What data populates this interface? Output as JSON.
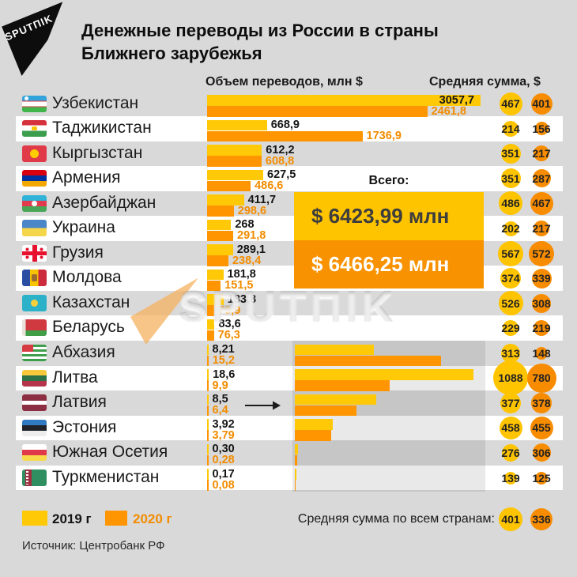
{
  "logo": {
    "text": "SPUTΠIK"
  },
  "title": {
    "line1": "Денежные переводы из России в страны",
    "line2": "Ближнего зарубежья"
  },
  "headers": {
    "volume": "Объем переводов, млн $",
    "avg": "Средняя сумма, $"
  },
  "total": {
    "label": "Всего:",
    "v2019": "$ 6423,99 млн",
    "v2020": "$ 6466,25 млн"
  },
  "watermark": {
    "text": "SPUTΠIK"
  },
  "legend": {
    "y2019": "2019 г",
    "y2020": "2020 г"
  },
  "footer": {
    "avg_all_label": "Средняя сумма по всем странам:",
    "avg_all_2019": "401",
    "avg_all_2020": "336",
    "source": "Источник: Центробанк РФ"
  },
  "colors": {
    "bar2019": "#ffc907",
    "bar2020": "#ff9500",
    "circle2019": "#ffc400",
    "circle2020": "#f78c00",
    "box2019": "#ffc400",
    "box2020": "#f89200",
    "value2020_text": "#f28c00",
    "page_bg": "#d9d9d9"
  },
  "rows": [
    {
      "country": "Узбекистан",
      "flag": "uz",
      "vol2019": "3057,7",
      "vol2020": "2461,8",
      "avg2019": "467",
      "avg2020": "401"
    },
    {
      "country": "Таджикистан",
      "flag": "tj",
      "vol2019": "668,9",
      "vol2020": "1736,9",
      "avg2019": "214",
      "avg2020": "156"
    },
    {
      "country": "Кыргызстан",
      "flag": "kg",
      "vol2019": "612,2",
      "vol2020": "608,8",
      "avg2019": "351",
      "avg2020": "217"
    },
    {
      "country": "Армения",
      "flag": "am",
      "vol2019": "627,5",
      "vol2020": "486,6",
      "avg2019": "351",
      "avg2020": "287"
    },
    {
      "country": "Азербайджан",
      "flag": "az",
      "vol2019": "411,7",
      "vol2020": "298,6",
      "avg2019": "486",
      "avg2020": "467"
    },
    {
      "country": "Украина",
      "flag": "ua",
      "vol2019": "268",
      "vol2020": "291,8",
      "avg2019": "202",
      "avg2020": "217"
    },
    {
      "country": "Грузия",
      "flag": "ge",
      "vol2019": "289,1",
      "vol2020": "238,4",
      "avg2019": "567",
      "avg2020": "572"
    },
    {
      "country": "Молдова",
      "flag": "md",
      "vol2019": "181,8",
      "vol2020": "151,5",
      "avg2019": "374",
      "avg2020": "339"
    },
    {
      "country": "Казахстан",
      "flag": "kz",
      "vol2019": "183,8",
      "vol2020": "79,9",
      "avg2019": "526",
      "avg2020": "308"
    },
    {
      "country": "Беларусь",
      "flag": "by",
      "vol2019": "83,6",
      "vol2020": "76,3",
      "avg2019": "229",
      "avg2020": "219"
    },
    {
      "country": "Абхазия",
      "flag": "ab",
      "vol2019": "8,21",
      "vol2020": "15,2",
      "avg2019": "313",
      "avg2020": "148"
    },
    {
      "country": "Литва",
      "flag": "lt",
      "vol2019": "18,6",
      "vol2020": "9,9",
      "avg2019": "1088",
      "avg2020": "780"
    },
    {
      "country": "Латвия",
      "flag": "lv",
      "vol2019": "8,5",
      "vol2020": "6,4",
      "avg2019": "377",
      "avg2020": "378"
    },
    {
      "country": "Эстония",
      "flag": "ee",
      "vol2019": "3,92",
      "vol2020": "3,79",
      "avg2019": "458",
      "avg2020": "455"
    },
    {
      "country": "Южная Осетия",
      "flag": "os",
      "vol2019": "0,30",
      "vol2020": "0,28",
      "avg2019": "276",
      "avg2020": "306"
    },
    {
      "country": "Туркменистан",
      "flag": "tm",
      "vol2019": "0,17",
      "vol2020": "0,08",
      "avg2019": "139",
      "avg2020": "125"
    }
  ],
  "chart_data": {
    "type": "bar",
    "orientation": "horizontal",
    "title": "Денежные переводы из России в страны Ближнего зарубежья",
    "xlabel": "Объем переводов, млн $",
    "secondary_label": "Средняя сумма, $",
    "categories": [
      "Узбекистан",
      "Таджикистан",
      "Кыргызстан",
      "Армения",
      "Азербайджан",
      "Украина",
      "Грузия",
      "Молдова",
      "Казахстан",
      "Беларусь",
      "Абхазия",
      "Литва",
      "Латвия",
      "Эстония",
      "Южная Осетия",
      "Туркменистан"
    ],
    "series": [
      {
        "name": "2019 г",
        "color": "#ffc907",
        "values": [
          3057.7,
          668.9,
          612.2,
          627.5,
          411.7,
          268,
          289.1,
          181.8,
          183.8,
          83.6,
          8.21,
          18.6,
          8.5,
          3.92,
          0.3,
          0.17
        ]
      },
      {
        "name": "2020 г",
        "color": "#ff9500",
        "values": [
          2461.8,
          1736.9,
          608.8,
          486.6,
          298.6,
          291.8,
          238.4,
          151.5,
          79.9,
          76.3,
          15.2,
          9.9,
          6.4,
          3.79,
          0.28,
          0.08
        ]
      }
    ],
    "avg_sum_series": [
      {
        "name": "2019 г",
        "values": [
          467,
          214,
          351,
          351,
          486,
          202,
          567,
          374,
          526,
          229,
          313,
          1088,
          377,
          458,
          276,
          139
        ]
      },
      {
        "name": "2020 г",
        "values": [
          401,
          156,
          217,
          287,
          467,
          217,
          572,
          339,
          308,
          219,
          148,
          780,
          378,
          455,
          306,
          125
        ]
      }
    ],
    "totals": {
      "label": "Всего:",
      "total_2019_mln": 6423.99,
      "total_2020_mln": 6466.25
    },
    "avg_all_countries": {
      "2019": 401,
      "2020": 336
    },
    "source": "Источник: Центробанк РФ",
    "legend_position": "bottom-left",
    "grid": false
  }
}
